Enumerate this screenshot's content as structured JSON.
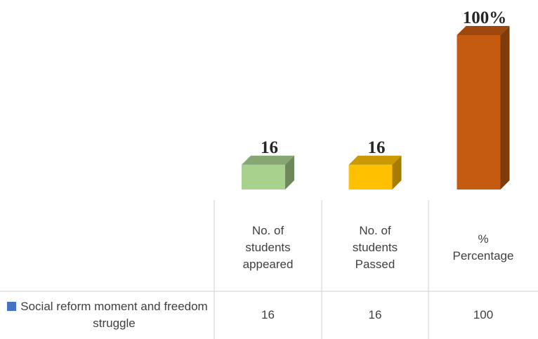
{
  "chart_data": {
    "type": "bar3d",
    "categories": [
      "No. of students appeared",
      "No. of students Passed",
      "% Percentage"
    ],
    "series": [
      {
        "name": "Social reform moment and freedom struggle",
        "color": "#4472c4",
        "values": [
          16,
          16,
          100
        ],
        "value_labels": [
          "16",
          "16",
          "100%"
        ]
      }
    ],
    "colors": [
      "#a9d18e",
      "#ffc000",
      "#c55a11"
    ]
  }
}
